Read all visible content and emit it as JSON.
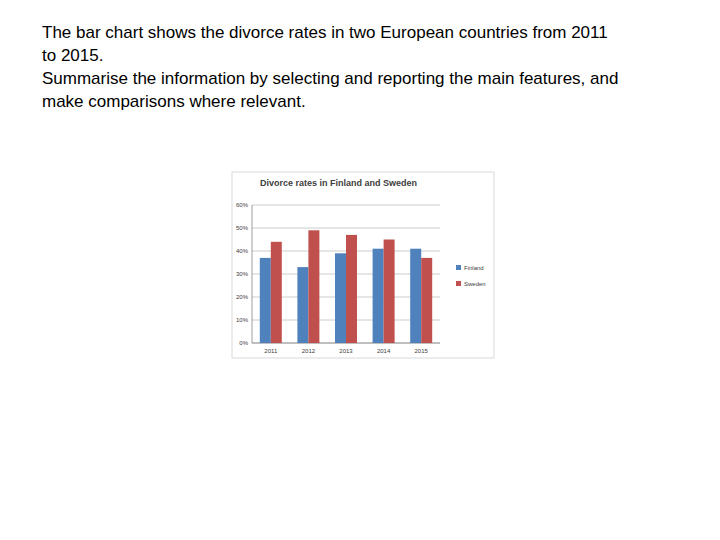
{
  "prompt": [
    "The bar chart shows the divorce rates in two European countries from 2011",
    "to 2015.",
    "Summarise the information by selecting and reporting the main features, and",
    "make comparisons where relevant."
  ],
  "chart_data": {
    "type": "bar",
    "title": "Divorce rates in Finland and Sweden",
    "categories": [
      "2011",
      "2012",
      "2013",
      "2014",
      "2015"
    ],
    "series": [
      {
        "name": "Finland",
        "color": "#4f81bd",
        "values": [
          37,
          33,
          39,
          41,
          41
        ]
      },
      {
        "name": "Sweden",
        "color": "#c0504d",
        "values": [
          44,
          49,
          47,
          45,
          37
        ]
      }
    ],
    "ylim": [
      0,
      60
    ],
    "yticks": [
      {
        "value": 0,
        "label": "0%"
      },
      {
        "value": 10,
        "label": "10%"
      },
      {
        "value": 20,
        "label": "20%"
      },
      {
        "value": 30,
        "label": "30%"
      },
      {
        "value": 40,
        "label": "40%"
      },
      {
        "value": 50,
        "label": "50%"
      },
      {
        "value": 60,
        "label": "60%"
      }
    ],
    "grid": true,
    "legend": "right"
  }
}
